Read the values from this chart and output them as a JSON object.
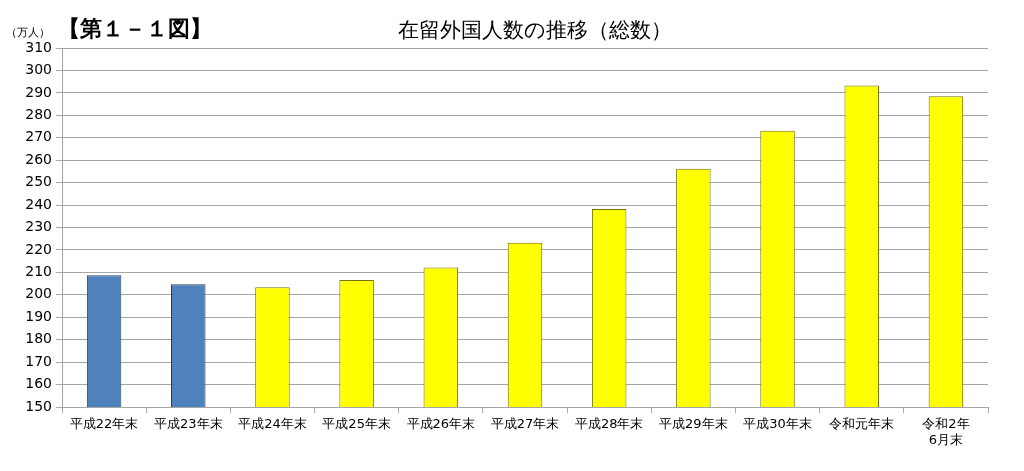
{
  "chart_data": {
    "type": "bar",
    "title": "在留外国人数の推移（総数）",
    "ylabel": "（万人）",
    "annotations": [
      "【第１－１図】"
    ],
    "categories": [
      "平成22年末",
      "平成23年末",
      "平成24年末",
      "平成25年末",
      "平成26年末",
      "平成27年末",
      "平成28年末",
      "平成29年末",
      "平成30年末",
      "令和元年末",
      "令和2年\n6月末"
    ],
    "values": [
      208.7,
      204.7,
      203.4,
      206.6,
      212.2,
      223.2,
      238.3,
      256.2,
      273.1,
      293.3,
      288.5
    ],
    "colors": [
      "#4f81bd",
      "#4f81bd",
      "#ffff00",
      "#ffff00",
      "#ffff00",
      "#ffff00",
      "#ffff00",
      "#ffff00",
      "#ffff00",
      "#ffff00",
      "#ffff00"
    ],
    "ylim": [
      150,
      310
    ],
    "yticks": [
      150,
      160,
      170,
      180,
      190,
      200,
      210,
      220,
      230,
      240,
      250,
      260,
      270,
      280,
      290,
      300,
      310
    ],
    "grid": "y"
  }
}
